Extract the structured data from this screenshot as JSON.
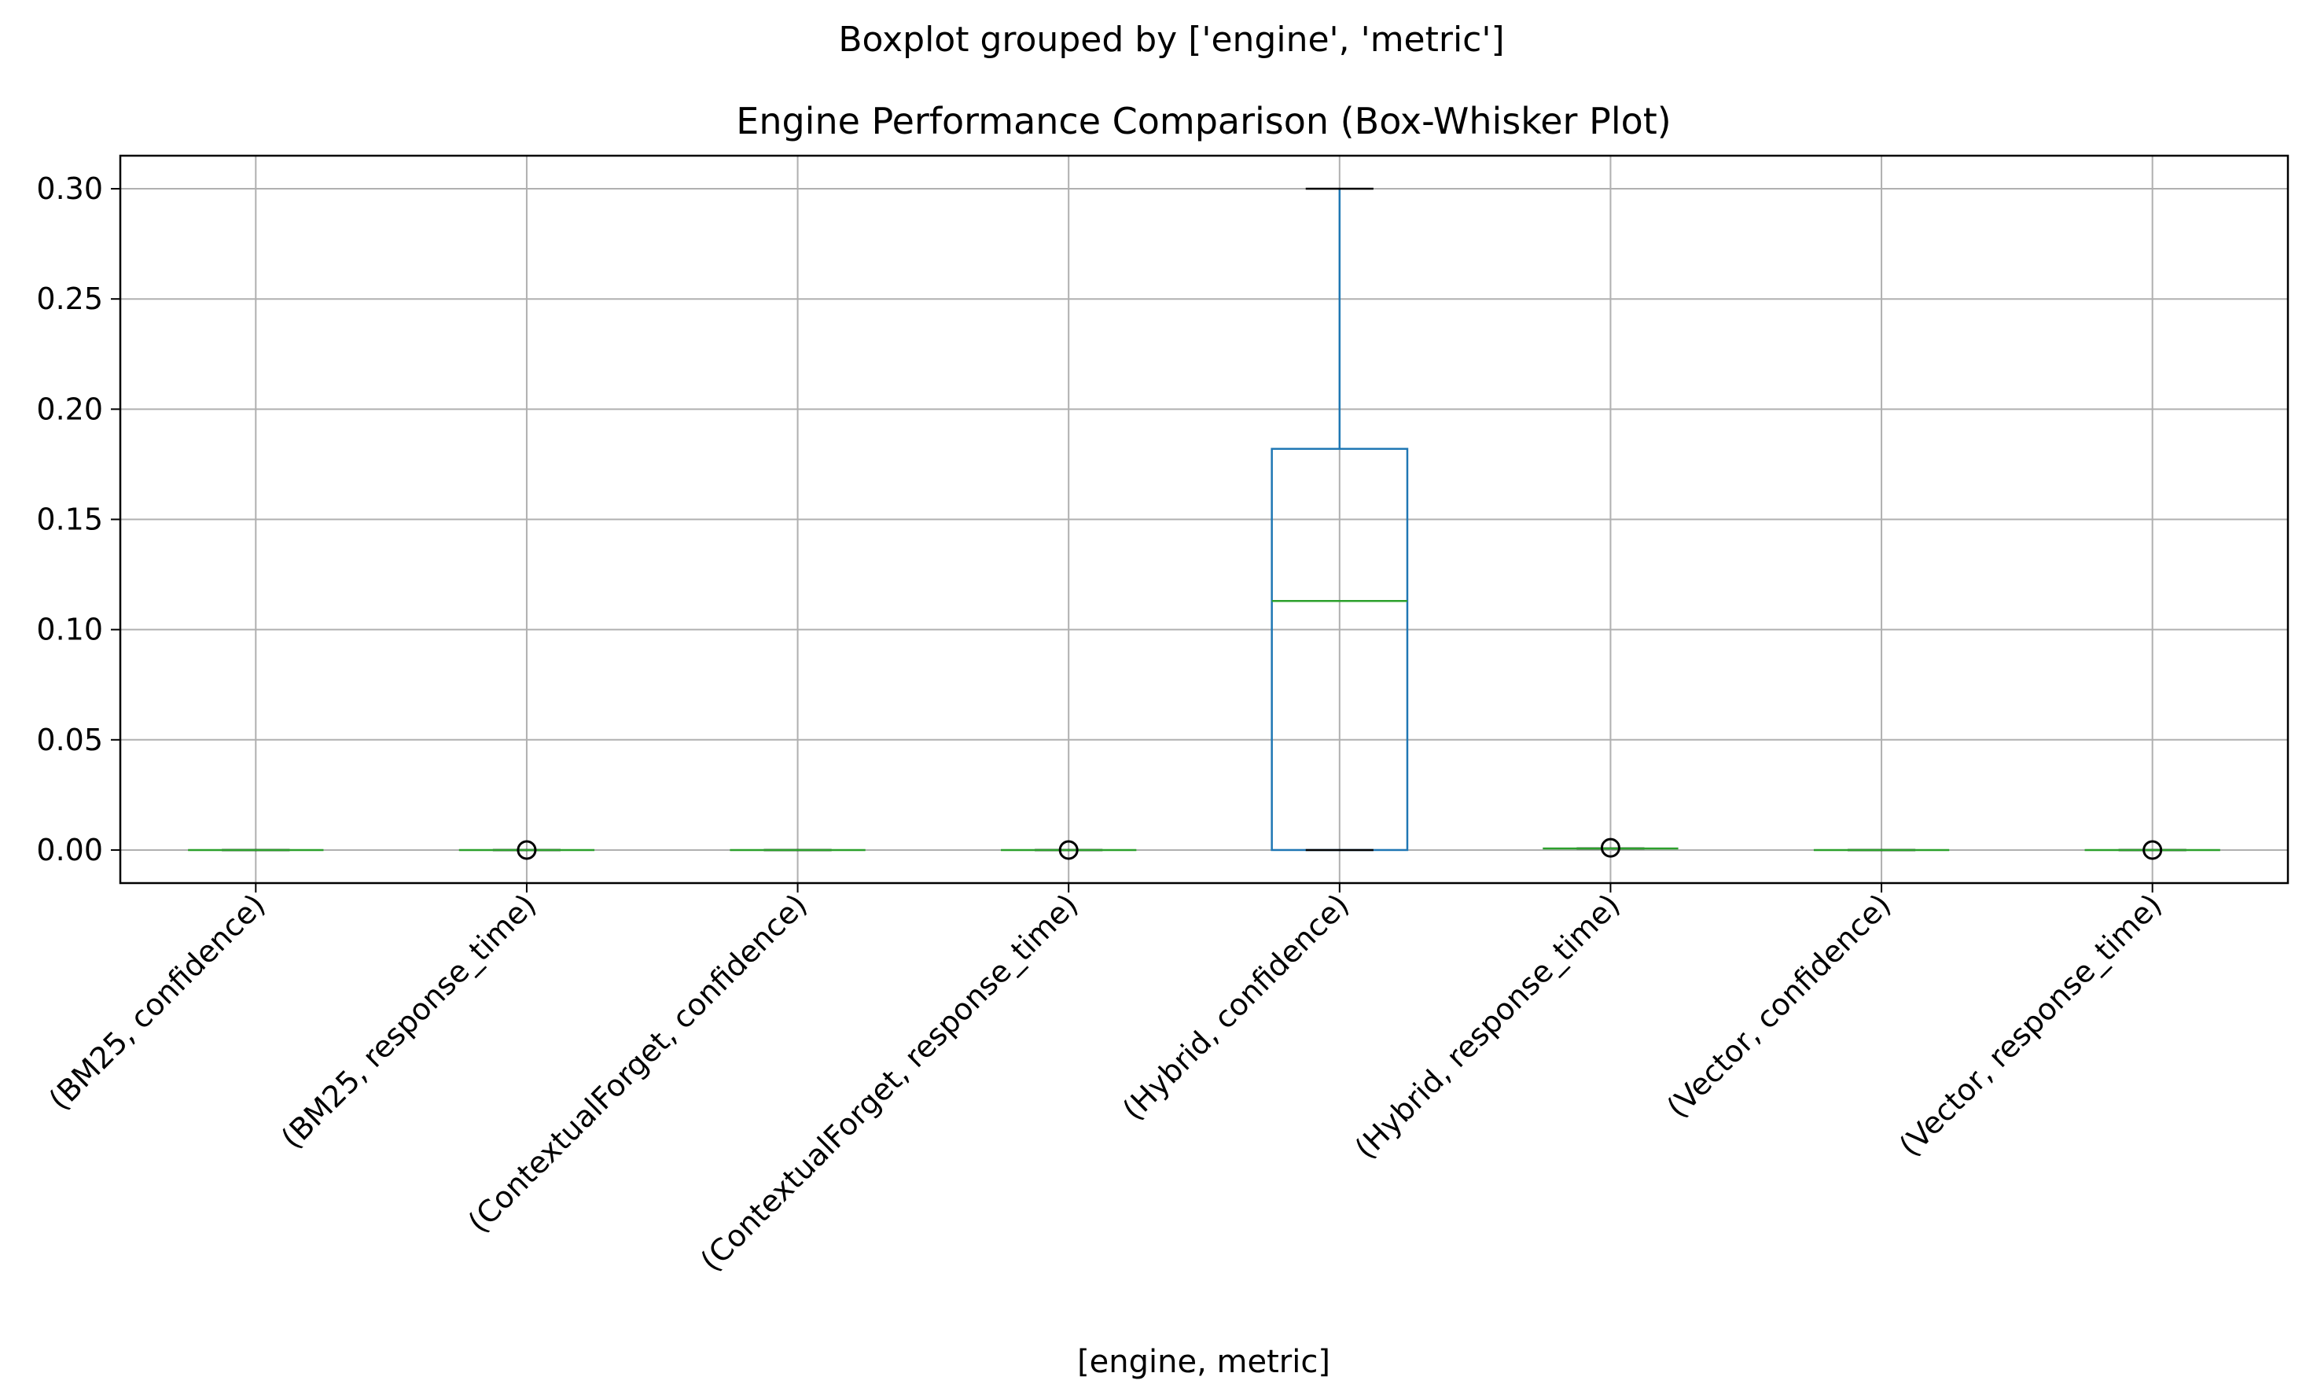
{
  "suptitle": "Boxplot grouped by ['engine', 'metric']",
  "chart_data": {
    "type": "boxplot",
    "title": "Engine Performance Comparison (Box-Whisker Plot)",
    "xlabel": "[engine, metric]",
    "ylabel": "",
    "ylim": [
      -0.015,
      0.315
    ],
    "yticks": [
      "0.00",
      "0.05",
      "0.10",
      "0.15",
      "0.20",
      "0.25",
      "0.30"
    ],
    "grid": true,
    "categories": [
      "(BM25, confidence)",
      "(BM25, response_time)",
      "(ContextualForget, confidence)",
      "(ContextualForget, response_time)",
      "(Hybrid, confidence)",
      "(Hybrid, response_time)",
      "(Vector, confidence)",
      "(Vector, response_time)"
    ],
    "boxes": [
      {
        "whislo": 0.0,
        "q1": 0.0,
        "med": 0.0,
        "q3": 0.0,
        "whishi": 0.0,
        "fliers": []
      },
      {
        "whislo": 0.0,
        "q1": 0.0,
        "med": 0.0,
        "q3": 0.0,
        "whishi": 0.0,
        "fliers": [
          0.0
        ]
      },
      {
        "whislo": 0.0,
        "q1": 0.0,
        "med": 0.0,
        "q3": 0.0,
        "whishi": 0.0,
        "fliers": []
      },
      {
        "whislo": 0.0,
        "q1": 0.0,
        "med": 0.0,
        "q3": 0.0,
        "whishi": 0.0,
        "fliers": [
          0.0
        ]
      },
      {
        "whislo": 0.0,
        "q1": 0.0,
        "med": 0.113,
        "q3": 0.182,
        "whishi": 0.3,
        "fliers": []
      },
      {
        "whislo": 0.0007,
        "q1": 0.0007,
        "med": 0.0007,
        "q3": 0.0007,
        "whishi": 0.0007,
        "fliers": [
          0.001
        ]
      },
      {
        "whislo": 0.0,
        "q1": 0.0,
        "med": 0.0,
        "q3": 0.0,
        "whishi": 0.0,
        "fliers": []
      },
      {
        "whislo": 0.0,
        "q1": 0.0,
        "med": 0.0,
        "q3": 0.0,
        "whishi": 0.0,
        "fliers": [
          0.0
        ]
      }
    ],
    "colors": {
      "box": "#1f77b4",
      "median": "#2ca02c",
      "cap": "#000000",
      "grid": "#b0b0b0",
      "flier": "#000000"
    }
  }
}
